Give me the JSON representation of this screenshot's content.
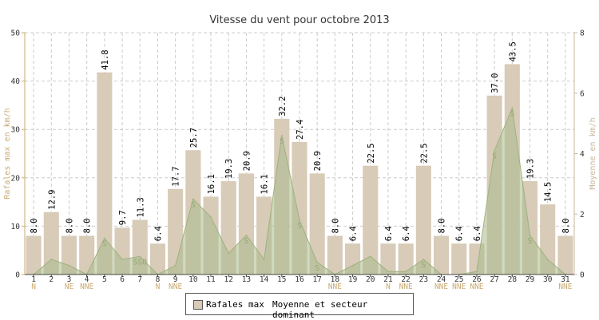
{
  "chart_data": {
    "type": "bar",
    "title": "Vitesse du vent pour octobre 2013",
    "ylabel_left": "Rafales max en km/h",
    "ylabel_right": "Moyenne en km/h",
    "ylim_left": [
      0,
      50
    ],
    "yticks_left": [
      0,
      10,
      20,
      30,
      40,
      50
    ],
    "ylim_right": [
      0,
      8
    ],
    "yticks_right": [
      0,
      2,
      4,
      6,
      8
    ],
    "grid": true,
    "legend_position": "bottom",
    "categories": [
      "1",
      "2",
      "3",
      "4",
      "5",
      "6",
      "7",
      "8",
      "9",
      "10",
      "11",
      "12",
      "13",
      "14",
      "15",
      "16",
      "17",
      "18",
      "19",
      "20",
      "21",
      "22",
      "23",
      "24",
      "25",
      "26",
      "27",
      "28",
      "29",
      "30",
      "31"
    ],
    "series": [
      {
        "name": "Rafales max",
        "type": "bar",
        "axis": "left",
        "color": "#d8cbb8",
        "values": [
          8.0,
          12.9,
          8.0,
          8.0,
          41.8,
          9.7,
          11.3,
          6.4,
          17.7,
          25.7,
          16.1,
          19.3,
          20.9,
          16.1,
          32.2,
          27.4,
          20.9,
          8.0,
          6.4,
          22.5,
          6.4,
          6.4,
          22.5,
          8.0,
          6.4,
          6.4,
          37.0,
          43.5,
          19.3,
          14.5,
          8.0
        ],
        "value_labels": [
          "8.0",
          "12.9",
          "8.0",
          "8.0",
          "41.8",
          "9.7",
          "11.3",
          "6.4",
          "17.7",
          "25.7",
          "16.1",
          "19.3",
          "20.9",
          "16.1",
          "32.2",
          "27.4",
          "20.9",
          "8.0",
          "6.4",
          "22.5",
          "6.4",
          "6.4",
          "22.5",
          "8.0",
          "6.4",
          "6.4",
          "37.0",
          "43.5",
          "19.3",
          "14.5",
          "8.0"
        ]
      },
      {
        "name": "Moyenne et secteur dominant",
        "type": "area",
        "axis": "right",
        "color": "#a9bc8c",
        "values": [
          0.0,
          0.5,
          0.3,
          0.0,
          1.2,
          0.5,
          0.6,
          0.0,
          0.3,
          2.5,
          1.9,
          0.7,
          1.3,
          0.5,
          4.6,
          1.8,
          0.4,
          0.0,
          0.3,
          0.6,
          0.1,
          0.1,
          0.5,
          0.0,
          0.0,
          0.1,
          4.1,
          5.5,
          1.3,
          0.5,
          0.0
        ],
        "sectors": [
          "",
          "",
          "",
          "",
          "S",
          "",
          "SSO",
          "",
          "",
          "S",
          "",
          "",
          "S",
          "",
          "S",
          "S",
          "S",
          "",
          "",
          "",
          "",
          "",
          "S",
          "",
          "",
          "",
          "S",
          "S",
          "S",
          "",
          ""
        ]
      }
    ],
    "x_sub_labels": [
      "N",
      "",
      "NE",
      "NNE",
      "",
      "",
      "",
      "N",
      "NNE",
      "",
      "",
      "",
      "",
      "",
      "",
      "",
      "",
      "NNE",
      "",
      "",
      "N",
      "NNE",
      "",
      "NNE",
      "NNE",
      "NNE",
      "",
      "",
      "",
      "",
      "NNE"
    ]
  },
  "colors": {
    "bar_fill": "#d8cbb8",
    "area_fill": "#a9bc8c",
    "axis_left": "#c9aa72",
    "axis_right": "#c9b79c",
    "grid": "#cccccc"
  },
  "legend": {
    "bar_label": "Rafales max",
    "area_label": "Moyenne et secteur dominant"
  }
}
